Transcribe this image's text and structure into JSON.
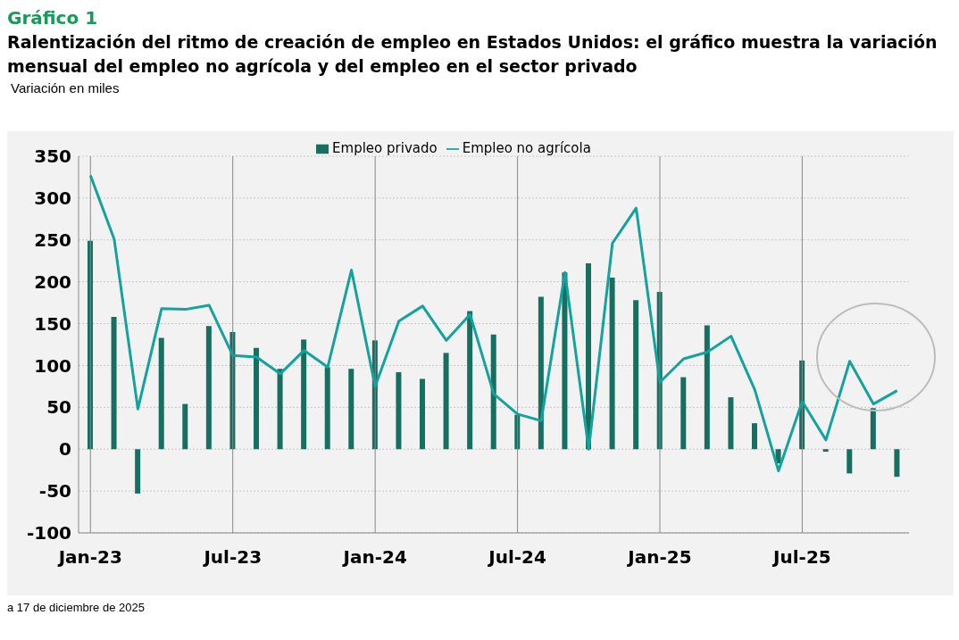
{
  "chart_data": {
    "type": "bar",
    "title": "Gráfico 1",
    "subtitle": "Ralentización del ritmo de creación de empleo en Estados Unidos: el gráfico muestra la variación mensual del empleo no agrícola y del empleo en el sector privado",
    "ylabel": "Variación en miles",
    "annotations": [
      "a 17 de diciembre de 2025"
    ],
    "categories": [
      "Jan-23",
      null,
      null,
      null,
      null,
      null,
      "Jul-23",
      null,
      null,
      null,
      null,
      null,
      "Jan-24",
      null,
      null,
      null,
      null,
      null,
      "Jul-24",
      null,
      null,
      null,
      null,
      null,
      "Jan-25",
      null,
      null,
      null,
      null,
      null,
      "Jul-25",
      null,
      null,
      null,
      null
    ],
    "series": [
      {
        "name": "Empleo privado",
        "color": "#176f62",
        "values": [
          249,
          158,
          -53,
          133,
          54,
          147,
          140,
          121,
          96,
          131,
          98,
          96,
          130,
          92,
          84,
          115,
          165,
          137,
          41,
          182,
          211,
          222,
          205,
          178,
          188,
          86,
          148,
          62,
          31,
          -17,
          106,
          -3,
          -29,
          49,
          -33
        ]
      },
      {
        "name": "Empleo no agrícola",
        "type": "line",
        "color": "#13a39c",
        "values": [
          327,
          251,
          48,
          168,
          167,
          172,
          112,
          110,
          90,
          118,
          98,
          214,
          75,
          153,
          171,
          130,
          161,
          66,
          42,
          34,
          211,
          0,
          246,
          288,
          80,
          108,
          116,
          135,
          71,
          -26,
          57,
          11,
          105,
          54,
          70
        ]
      }
    ],
    "ylim": [
      -100,
      350
    ],
    "yticks": [
      -100,
      -50,
      0,
      50,
      100,
      150,
      200,
      250,
      300,
      350
    ],
    "grid": true,
    "legend": "top",
    "marker": "none",
    "line_style": "solid"
  }
}
